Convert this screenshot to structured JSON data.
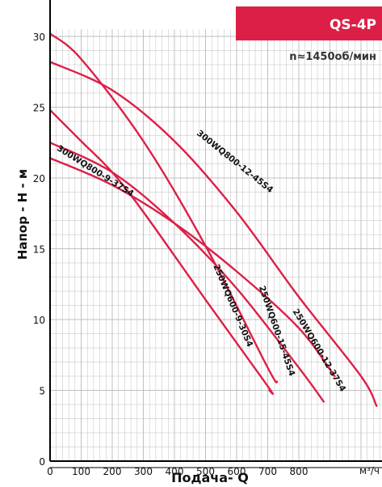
{
  "chart_data": {
    "type": "line",
    "title": "QS-4P",
    "subtitle": "n≈1450об/мин",
    "xlabel": "Подача- Q",
    "ylabel": "Напор - Н - м",
    "x_unit": "м³/ч",
    "xlim": [
      0,
      1060
    ],
    "ylim": [
      0,
      30.5
    ],
    "x_ticks": [
      0,
      100,
      200,
      300,
      400,
      500,
      600,
      700,
      800
    ],
    "y_ticks": [
      0,
      5,
      10,
      15,
      20,
      25,
      30
    ],
    "grid": true,
    "colors": {
      "curve": "#dd1f47",
      "badge": "#dc1f47",
      "grid": "#bfbfbf"
    },
    "series": [
      {
        "name": "300WQ800-12-45S4",
        "x": [
          0,
          200,
          400,
          600,
          800,
          1000,
          1050
        ],
        "y": [
          28.2,
          26.2,
          22.6,
          17.6,
          11.6,
          6.0,
          3.9
        ]
      },
      {
        "name": "300WQ800-9-37S4",
        "x": [
          0,
          200,
          400,
          600,
          800,
          915
        ],
        "y": [
          21.4,
          19.5,
          16.8,
          13.4,
          9.4,
          6.0
        ]
      },
      {
        "name": "250WQ600-15-45S4",
        "x": [
          0,
          100,
          300,
          500,
          700,
          730
        ],
        "y": [
          30.2,
          28.4,
          22.6,
          15.2,
          6.6,
          5.6
        ]
      },
      {
        "name": "250WQ600-9-30S4",
        "x": [
          0,
          100,
          200,
          300,
          500,
          700,
          705
        ],
        "y": [
          24.8,
          22.6,
          20.4,
          17.6,
          11.4,
          5.3,
          5.0
        ]
      },
      {
        "name": "250WQ600-12-37S4",
        "x": [
          0,
          200,
          400,
          600,
          800,
          880
        ],
        "y": [
          22.5,
          20.4,
          16.8,
          12.2,
          6.6,
          4.2
        ]
      }
    ]
  }
}
